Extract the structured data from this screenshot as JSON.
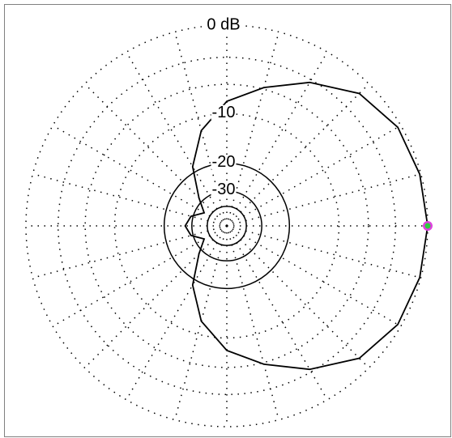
{
  "chart_data": {
    "type": "polar",
    "log_scale": true,
    "grid": true,
    "rticks": [
      {
        "value": 0,
        "label": "0 dB"
      },
      -10,
      -20,
      -30
    ],
    "rminor": [
      -3,
      -6,
      -40
    ],
    "thetaticks": [
      0,
      15,
      30,
      45,
      60,
      75,
      90,
      105,
      120,
      135,
      150,
      165,
      180,
      195,
      210,
      225,
      240,
      255,
      270,
      285,
      300,
      315,
      330,
      345
    ],
    "series": [
      {
        "color": "#000000",
        "theta": [
          0,
          15,
          30,
          45,
          60,
          75,
          90,
          105,
          120,
          135,
          150,
          165,
          180,
          195,
          210,
          225,
          240,
          255,
          270,
          285,
          300,
          315,
          330,
          345,
          360
        ],
        "values": [
          0,
          -0.1,
          -0.3,
          -1.2,
          -3.3,
          -5.8,
          -8.2,
          -12.2,
          -18.5,
          -28,
          -35,
          -29,
          -27,
          -29,
          -35,
          -28,
          -18.5,
          -12.2,
          -8.2,
          -5.8,
          -3.3,
          -1.2,
          -0.3,
          -0.1,
          0
        ]
      }
    ],
    "marker_colors": [
      "#2ecc40",
      "#e040e0"
    ]
  }
}
